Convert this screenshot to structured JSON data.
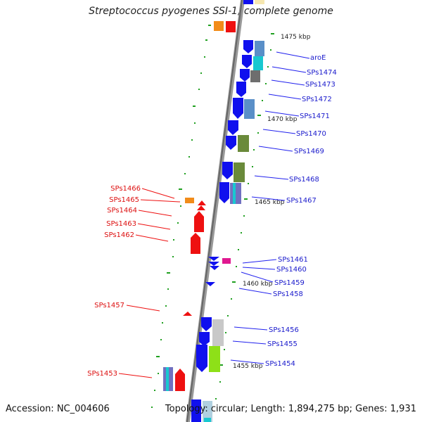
{
  "title": "Streptococcus pyogenes SSI-1, complete genome",
  "footer": {
    "accession": "Accession: NC_004606",
    "topology": "Topology: circular; Length: 1,894,275 bp; Genes: 1,931"
  },
  "colors": {
    "forward_gene": "#1010ee",
    "reverse_gene": "#ee1010",
    "backbone": "#888888",
    "scale_tick": "#20a020"
  },
  "scale_marks": [
    "1475 kbp",
    "1470 kbp",
    "1465 kbp",
    "1460 kbp",
    "1455 kbp"
  ],
  "forward_labels": [
    "aroE",
    "SPs1474",
    "SPs1473",
    "SPs1472",
    "SPs1471",
    "SPs1470",
    "SPs1469",
    "SPs1468",
    "SPs1467",
    "SPs1461",
    "SPs1460",
    "SPs1459",
    "SPs1458",
    "SPs1456",
    "SPs1455",
    "SPs1454"
  ],
  "reverse_labels": [
    "SPs1466",
    "SPs1465",
    "SPs1464",
    "SPs1463",
    "SPs1462",
    "SPs1457",
    "SPs1453"
  ]
}
